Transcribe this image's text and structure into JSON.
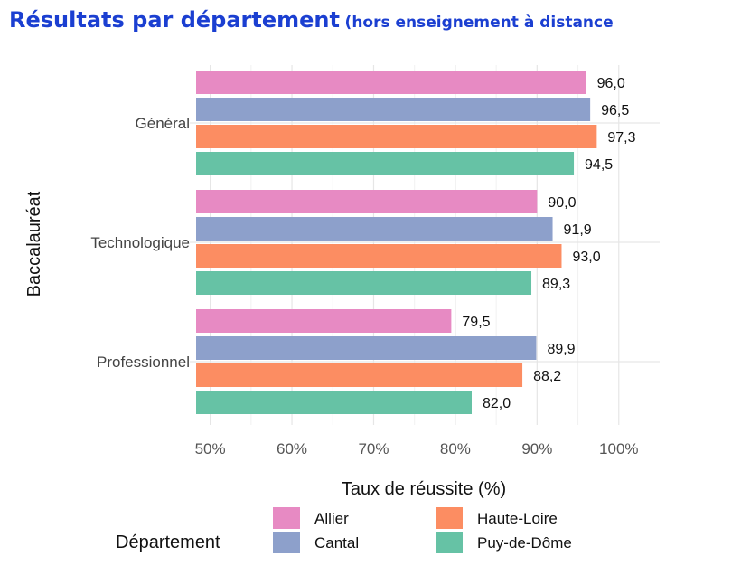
{
  "chart_data": {
    "type": "bar",
    "orientation": "horizontal",
    "title": "Résultats par département",
    "subtitle": "(hors enseignement à distance",
    "categories": [
      "Général",
      "Technologique",
      "Professionnel"
    ],
    "series": [
      {
        "name": "Allier",
        "color": "#e78ac3",
        "values": [
          96.0,
          90.0,
          79.5
        ],
        "labels": [
          "96,0",
          "90,0",
          "79,5"
        ]
      },
      {
        "name": "Cantal",
        "color": "#8da0cb",
        "values": [
          96.5,
          91.9,
          89.9
        ],
        "labels": [
          "96,5",
          "91,9",
          "89,9"
        ]
      },
      {
        "name": "Haute-Loire",
        "color": "#fc8d62",
        "values": [
          97.3,
          93.0,
          88.2
        ],
        "labels": [
          "97,3",
          "93,0",
          "88,2"
        ]
      },
      {
        "name": "Puy-de-Dôme",
        "color": "#66c2a5",
        "values": [
          94.5,
          89.3,
          82.0
        ],
        "labels": [
          "94,5",
          "89,3",
          "82,0"
        ]
      }
    ],
    "xlabel": "Taux de réussite (%)",
    "ylabel": "Baccalauréat",
    "xlim": [
      47.5,
      105
    ],
    "x_ticks": [
      50,
      60,
      70,
      80,
      90,
      100
    ],
    "x_tick_labels": [
      "50%",
      "60%",
      "70%",
      "80%",
      "90%",
      "100%"
    ],
    "grid": true,
    "legend_title": "Département",
    "legend_position": "bottom"
  }
}
